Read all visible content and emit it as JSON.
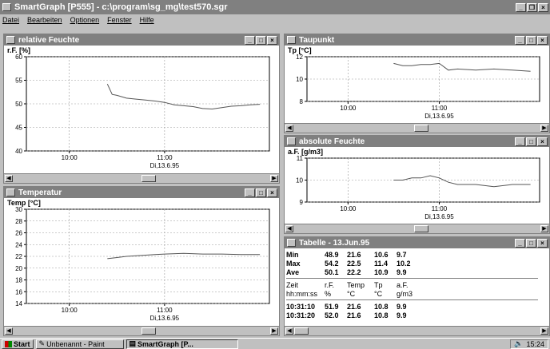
{
  "app": {
    "title": "SmartGraph [P555] - c:\\program\\sg_mg\\test570.sgr"
  },
  "menu": [
    "Datei",
    "Bearbeiten",
    "Optionen",
    "Fenster",
    "Hilfe"
  ],
  "windows": {
    "rf": {
      "title": "relative Feuchte",
      "ylabel": "r.F. [%]",
      "xlabel": "Di,13.6.95"
    },
    "temp": {
      "title": "Temperatur",
      "ylabel": "Temp [°C]",
      "xlabel": "Di,13.6.95"
    },
    "tp": {
      "title": "Taupunkt",
      "ylabel": "Tp [°C]",
      "xlabel": "Di,13.6.95"
    },
    "af": {
      "title": "absolute Feuchte",
      "ylabel": "a.F. [g/m3]",
      "xlabel": "Di,13.6.95"
    },
    "tab": {
      "title": "Tabelle - 13.Jun.95"
    }
  },
  "table": {
    "stats": [
      [
        "Min",
        "48.9",
        "21.6",
        "10.6",
        "9.7"
      ],
      [
        "Max",
        "54.2",
        "22.5",
        "11.4",
        "10.2"
      ],
      [
        "Ave",
        "50.1",
        "22.2",
        "10.9",
        "9.9"
      ]
    ],
    "header1": [
      "Zeit",
      "r.F.",
      "Temp",
      "Tp",
      "a.F."
    ],
    "header2": [
      "hh:mm:ss",
      "%",
      "°C",
      "°C",
      "g/m3"
    ],
    "rows": [
      [
        "10:31:10",
        "51.9",
        "21.6",
        "10.8",
        "9.9"
      ],
      [
        "10:31:20",
        "52.0",
        "21.6",
        "10.8",
        "9.9"
      ]
    ]
  },
  "taskbar": {
    "start": "Start",
    "items": [
      "Unbenannt - Paint",
      "SmartGraph [P..."
    ],
    "clock": "15:24"
  },
  "chart_data": [
    {
      "id": "rf",
      "type": "line",
      "title": "relative Feuchte",
      "ylabel": "r.F. [%]",
      "xlabel": "Di,13.6.95",
      "x_ticks": [
        "10:00",
        "11:00"
      ],
      "ylim": [
        40,
        60
      ],
      "y_ticks": [
        40,
        45,
        50,
        55,
        60
      ],
      "grid": true,
      "series": [
        {
          "x": [
            10.4,
            10.45,
            10.5,
            10.6,
            10.7,
            10.8,
            10.9,
            11.0,
            11.1,
            11.2,
            11.3,
            11.4,
            11.5,
            11.6,
            11.7,
            11.8,
            11.9,
            12.0
          ],
          "y": [
            54.2,
            52.0,
            51.8,
            51.2,
            51.0,
            50.8,
            50.6,
            50.3,
            49.8,
            49.6,
            49.4,
            49.0,
            48.9,
            49.2,
            49.5,
            49.6,
            49.8,
            49.9
          ]
        }
      ]
    },
    {
      "id": "temp",
      "type": "line",
      "title": "Temperatur",
      "ylabel": "Temp [°C]",
      "xlabel": "Di,13.6.95",
      "x_ticks": [
        "10:00",
        "11:00"
      ],
      "ylim": [
        14,
        30
      ],
      "y_ticks": [
        14,
        16,
        18,
        20,
        22,
        24,
        26,
        28,
        30
      ],
      "grid": true,
      "series": [
        {
          "x": [
            10.4,
            10.5,
            10.6,
            10.7,
            10.8,
            10.9,
            11.0,
            11.2,
            11.4,
            11.6,
            11.8,
            12.0
          ],
          "y": [
            21.6,
            21.8,
            22.0,
            22.1,
            22.2,
            22.3,
            22.4,
            22.5,
            22.4,
            22.4,
            22.3,
            22.3
          ]
        }
      ]
    },
    {
      "id": "tp",
      "type": "line",
      "title": "Taupunkt",
      "ylabel": "Tp [°C]",
      "xlabel": "Di,13.6.95",
      "x_ticks": [
        "10:00",
        "11:00"
      ],
      "ylim": [
        8,
        12
      ],
      "y_ticks": [
        8,
        10,
        12
      ],
      "grid": true,
      "series": [
        {
          "x": [
            10.5,
            10.6,
            10.7,
            10.8,
            10.9,
            11.0,
            11.1,
            11.2,
            11.4,
            11.6,
            11.8,
            12.0
          ],
          "y": [
            11.4,
            11.2,
            11.2,
            11.3,
            11.3,
            11.4,
            10.8,
            10.9,
            10.8,
            10.9,
            10.8,
            10.7
          ]
        }
      ]
    },
    {
      "id": "af",
      "type": "line",
      "title": "absolute Feuchte",
      "ylabel": "a.F. [g/m3]",
      "xlabel": "Di,13.6.95",
      "x_ticks": [
        "10:00",
        "11:00"
      ],
      "ylim": [
        9,
        11
      ],
      "y_ticks": [
        9,
        10,
        11
      ],
      "grid": true,
      "series": [
        {
          "x": [
            10.5,
            10.6,
            10.7,
            10.8,
            10.9,
            11.0,
            11.1,
            11.2,
            11.4,
            11.6,
            11.8,
            12.0
          ],
          "y": [
            10.0,
            10.0,
            10.1,
            10.1,
            10.2,
            10.1,
            9.9,
            9.8,
            9.8,
            9.7,
            9.8,
            9.8
          ]
        }
      ]
    }
  ]
}
